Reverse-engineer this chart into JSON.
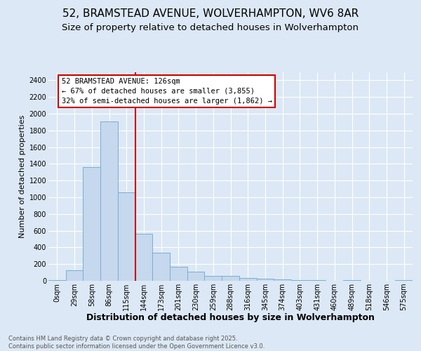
{
  "title": "52, BRAMSTEAD AVENUE, WOLVERHAMPTON, WV6 8AR",
  "subtitle": "Size of property relative to detached houses in Wolverhampton",
  "xlabel": "Distribution of detached houses by size in Wolverhampton",
  "ylabel": "Number of detached properties",
  "footer_line1": "Contains HM Land Registry data © Crown copyright and database right 2025.",
  "footer_line2": "Contains public sector information licensed under the Open Government Licence v3.0.",
  "bin_labels": [
    "0sqm",
    "29sqm",
    "58sqm",
    "86sqm",
    "115sqm",
    "144sqm",
    "173sqm",
    "201sqm",
    "230sqm",
    "259sqm",
    "288sqm",
    "316sqm",
    "345sqm",
    "374sqm",
    "403sqm",
    "431sqm",
    "460sqm",
    "489sqm",
    "518sqm",
    "546sqm",
    "575sqm"
  ],
  "bar_values": [
    10,
    130,
    1360,
    1910,
    1060,
    560,
    335,
    170,
    110,
    60,
    55,
    30,
    25,
    20,
    10,
    5,
    2,
    10,
    2,
    2,
    10
  ],
  "bar_color": "#c5d8ed",
  "bar_edgecolor": "#7aadd4",
  "bar_linewidth": 0.7,
  "vline_x": 4.5,
  "vline_color": "#cc0000",
  "vline_linewidth": 1.5,
  "annotation_text": "52 BRAMSTEAD AVENUE: 126sqm\n← 67% of detached houses are smaller (3,855)\n32% of semi-detached houses are larger (1,862) →",
  "annotation_box_edgecolor": "#cc0000",
  "annotation_bg": "white",
  "ylim": [
    0,
    2500
  ],
  "yticks": [
    0,
    200,
    400,
    600,
    800,
    1000,
    1200,
    1400,
    1600,
    1800,
    2000,
    2200,
    2400
  ],
  "bg_color": "#dce8f5",
  "plot_bg": "#dce8f5",
  "grid_color": "white",
  "title_fontsize": 11,
  "subtitle_fontsize": 9.5,
  "xlabel_fontsize": 9,
  "ylabel_fontsize": 8,
  "tick_fontsize": 7,
  "annotation_fontsize": 7.5,
  "footer_fontsize": 6
}
